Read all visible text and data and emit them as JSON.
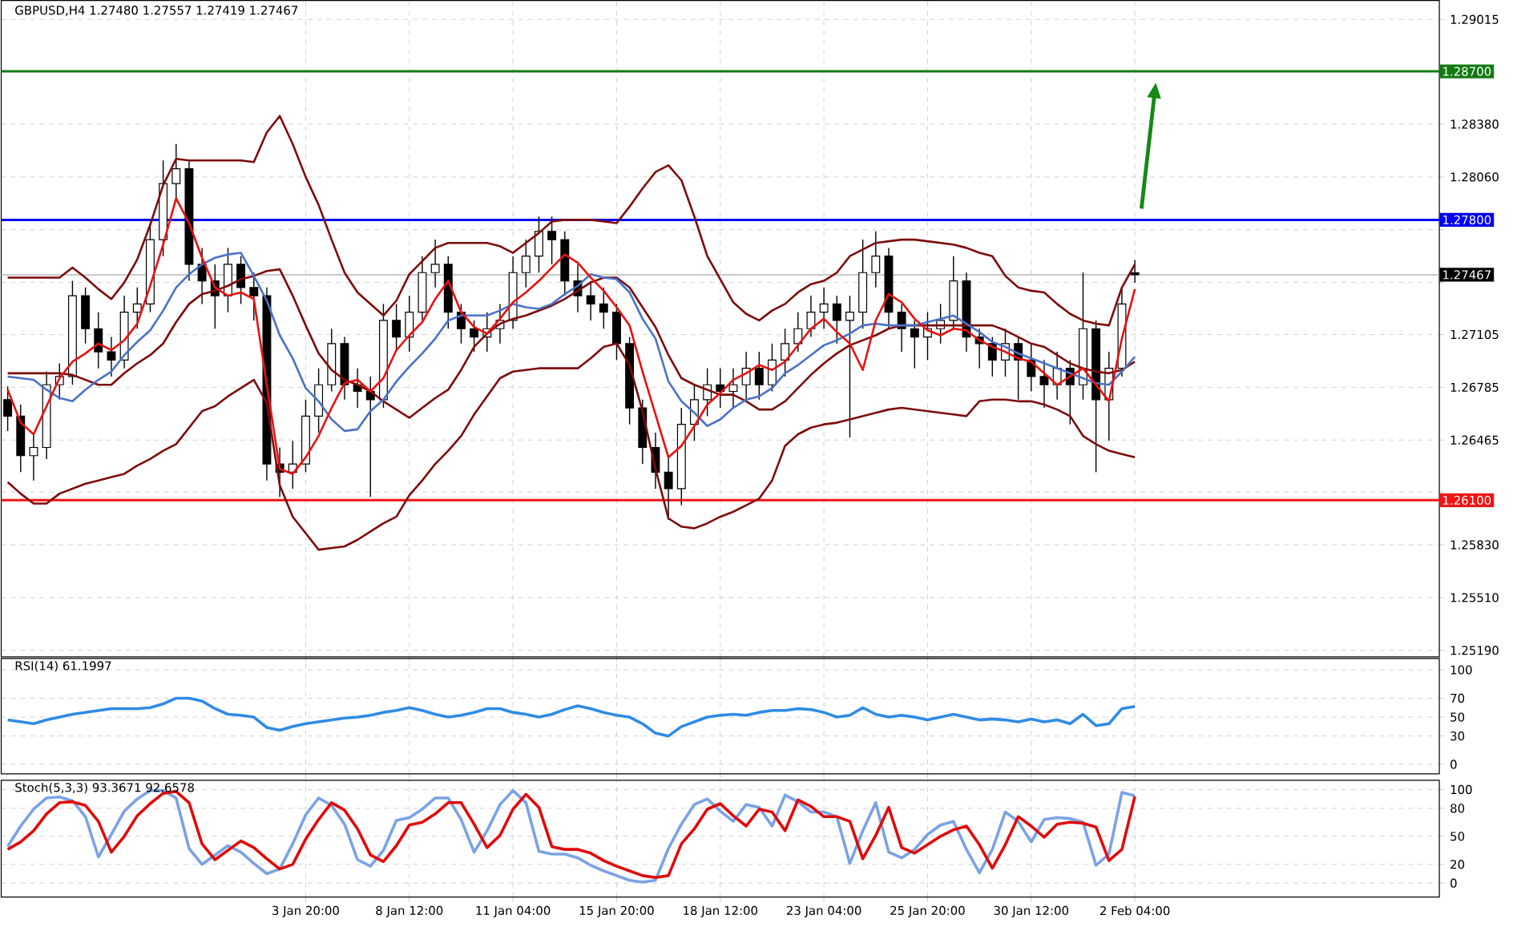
{
  "chart_data": [
    {
      "type": "candlestick",
      "title": "GBPUSD,H4 1.27480 1.27557 1.27419 1.27467",
      "categories": [
        null,
        null,
        null,
        null,
        null,
        null,
        null,
        null,
        null,
        null,
        null,
        null,
        null,
        null,
        null,
        null,
        null,
        null,
        null,
        null,
        null,
        null,
        null,
        null,
        null,
        null,
        null,
        null,
        null,
        null,
        null,
        null,
        null,
        null,
        null,
        null,
        null,
        null,
        null,
        null,
        null,
        null,
        null,
        null,
        null,
        null,
        null,
        null,
        null,
        null,
        null,
        null,
        null,
        null,
        null,
        null,
        null,
        null,
        null,
        null,
        null,
        null,
        null,
        null,
        null,
        null,
        null,
        null,
        null,
        null,
        null,
        null,
        null,
        null,
        null,
        null,
        null,
        null,
        null,
        null,
        null,
        null,
        null,
        null,
        null,
        null,
        null,
        null,
        null,
        null,
        null,
        null,
        null,
        null,
        null,
        null,
        null,
        null,
        null,
        null,
        null,
        null,
        null,
        null,
        null,
        null,
        null,
        null,
        null,
        null,
        null
      ],
      "color": "#000000",
      "ohlc": [
        [
          1.2671,
          1.2679,
          1.2652,
          1.2661
        ],
        [
          1.2661,
          1.2668,
          1.2627,
          1.2637
        ],
        [
          1.2637,
          1.265,
          1.2622,
          1.2642
        ],
        [
          1.2642,
          1.2688,
          1.2635,
          1.268
        ],
        [
          1.268,
          1.2693,
          1.2671,
          1.2685
        ],
        [
          1.2685,
          1.2743,
          1.268,
          1.2734
        ],
        [
          1.2734,
          1.2739,
          1.2705,
          1.2714
        ],
        [
          1.2714,
          1.2724,
          1.269,
          1.27
        ],
        [
          1.27,
          1.2709,
          1.2685,
          1.2695
        ],
        [
          1.2695,
          1.2734,
          1.269,
          1.2724
        ],
        [
          1.2724,
          1.2739,
          1.2714,
          1.2729
        ],
        [
          1.2729,
          1.2778,
          1.2724,
          1.2768
        ],
        [
          1.2768,
          1.2816,
          1.2758,
          1.2802
        ],
        [
          1.2802,
          1.2826,
          1.2792,
          1.2811
        ],
        [
          1.2811,
          1.2816,
          1.2743,
          1.2753
        ],
        [
          1.2753,
          1.2763,
          1.2729,
          1.2743
        ],
        [
          1.2743,
          1.2753,
          1.2714,
          1.2734
        ],
        [
          1.2734,
          1.2763,
          1.2724,
          1.2753
        ],
        [
          1.2753,
          1.2758,
          1.2729,
          1.2739
        ],
        [
          1.2739,
          1.2748,
          1.2719,
          1.2734
        ],
        [
          1.2734,
          1.2739,
          1.2622,
          1.2632
        ],
        [
          1.2632,
          1.2642,
          1.2612,
          1.2627
        ],
        [
          1.2627,
          1.2646,
          1.2617,
          1.2632
        ],
        [
          1.2632,
          1.2671,
          1.2627,
          1.2661
        ],
        [
          1.2661,
          1.269,
          1.2651,
          1.268
        ],
        [
          1.268,
          1.2714,
          1.2676,
          1.2705
        ],
        [
          1.2705,
          1.2709,
          1.2671,
          1.268
        ],
        [
          1.268,
          1.269,
          1.2666,
          1.2676
        ],
        [
          1.2676,
          1.2685,
          1.2612,
          1.2671
        ],
        [
          1.2671,
          1.2729,
          1.2666,
          1.2719
        ],
        [
          1.2719,
          1.2729,
          1.27,
          1.2709
        ],
        [
          1.2709,
          1.2734,
          1.27,
          1.2724
        ],
        [
          1.2724,
          1.2758,
          1.2719,
          1.2748
        ],
        [
          1.2748,
          1.2768,
          1.2739,
          1.2753
        ],
        [
          1.2753,
          1.2758,
          1.2714,
          1.2724
        ],
        [
          1.2724,
          1.2729,
          1.2705,
          1.2714
        ],
        [
          1.2714,
          1.2719,
          1.27,
          1.2709
        ],
        [
          1.2709,
          1.2724,
          1.27,
          1.2714
        ],
        [
          1.2714,
          1.2729,
          1.2705,
          1.2719
        ],
        [
          1.2719,
          1.2758,
          1.2714,
          1.2748
        ],
        [
          1.2748,
          1.2768,
          1.2739,
          1.2758
        ],
        [
          1.2758,
          1.2782,
          1.2748,
          1.2773
        ],
        [
          1.2773,
          1.2782,
          1.2753,
          1.2768
        ],
        [
          1.2768,
          1.2773,
          1.2734,
          1.2743
        ],
        [
          1.2743,
          1.2753,
          1.2724,
          1.2734
        ],
        [
          1.2734,
          1.2743,
          1.2719,
          1.2729
        ],
        [
          1.2729,
          1.2739,
          1.2714,
          1.2724
        ],
        [
          1.2724,
          1.2729,
          1.2695,
          1.2705
        ],
        [
          1.2705,
          1.2709,
          1.2656,
          1.2666
        ],
        [
          1.2666,
          1.2671,
          1.2632,
          1.2642
        ],
        [
          1.2642,
          1.2651,
          1.2617,
          1.2627
        ],
        [
          1.2627,
          1.2637,
          1.2598,
          1.2617
        ],
        [
          1.2617,
          1.2666,
          1.2607,
          1.2656
        ],
        [
          1.2656,
          1.268,
          1.2646,
          1.2671
        ],
        [
          1.2671,
          1.269,
          1.2661,
          1.268
        ],
        [
          1.268,
          1.269,
          1.2666,
          1.2676
        ],
        [
          1.2676,
          1.269,
          1.2666,
          1.268
        ],
        [
          1.268,
          1.27,
          1.2671,
          1.269
        ],
        [
          1.269,
          1.27,
          1.2671,
          1.268
        ],
        [
          1.268,
          1.2705,
          1.2676,
          1.2695
        ],
        [
          1.2695,
          1.2714,
          1.2685,
          1.2705
        ],
        [
          1.2705,
          1.2724,
          1.27,
          1.2714
        ],
        [
          1.2714,
          1.2734,
          1.2709,
          1.2724
        ],
        [
          1.2724,
          1.2739,
          1.2714,
          1.2729
        ],
        [
          1.2729,
          1.2734,
          1.2705,
          1.2719
        ],
        [
          1.2719,
          1.2734,
          1.2648,
          1.2724
        ],
        [
          1.2724,
          1.2768,
          1.2714,
          1.2748
        ],
        [
          1.2748,
          1.2773,
          1.2739,
          1.2758
        ],
        [
          1.2758,
          1.2763,
          1.2714,
          1.2724
        ],
        [
          1.2724,
          1.2729,
          1.27,
          1.2714
        ],
        [
          1.2714,
          1.2719,
          1.269,
          1.2709
        ],
        [
          1.2709,
          1.2724,
          1.2695,
          1.2714
        ],
        [
          1.2714,
          1.2729,
          1.2705,
          1.2719
        ],
        [
          1.2719,
          1.2758,
          1.2714,
          1.2743
        ],
        [
          1.2743,
          1.2748,
          1.27,
          1.2709
        ],
        [
          1.2709,
          1.2714,
          1.269,
          1.2705
        ],
        [
          1.2705,
          1.2709,
          1.2685,
          1.2695
        ],
        [
          1.2695,
          1.2714,
          1.2685,
          1.2705
        ],
        [
          1.2705,
          1.2709,
          1.2671,
          1.2695
        ],
        [
          1.2695,
          1.2705,
          1.2676,
          1.2685
        ],
        [
          1.2685,
          1.2695,
          1.2666,
          1.268
        ],
        [
          1.268,
          1.27,
          1.2671,
          1.269
        ],
        [
          1.269,
          1.2695,
          1.2656,
          1.268
        ],
        [
          1.268,
          1.2748,
          1.2671,
          1.2714
        ],
        [
          1.2714,
          1.2719,
          1.2627,
          1.2671
        ],
        [
          1.2671,
          1.27,
          1.2646,
          1.269
        ],
        [
          1.269,
          1.2739,
          1.2685,
          1.2729
        ],
        [
          1.2748,
          1.27557,
          1.27419,
          1.27467
        ],
        null,
        null,
        null,
        null,
        null,
        null,
        null,
        null,
        null,
        null,
        null,
        null,
        null,
        null,
        null,
        null,
        null,
        null,
        null,
        null,
        null,
        null,
        null
      ],
      "series": [
        {
          "type": "line",
          "color": "#7d0c0c",
          "values": [
            1.2745,
            1.2745,
            1.2745,
            1.2745,
            1.2745,
            1.2751,
            1.2745,
            1.2738,
            1.2732,
            1.2742,
            1.2756,
            1.2777,
            1.2801,
            1.2817,
            1.2816,
            1.2816,
            1.2816,
            1.2816,
            1.2816,
            1.2815,
            1.2833,
            1.2843,
            1.2826,
            1.2806,
            1.2789,
            1.2768,
            1.2748,
            1.2736,
            1.2729,
            1.2722,
            1.2731,
            1.2747,
            1.2755,
            1.2763,
            1.2766,
            1.2766,
            1.2766,
            1.2766,
            1.2764,
            1.276,
            1.2766,
            1.2772,
            1.2779,
            1.278,
            1.278,
            1.278,
            1.2779,
            1.2778,
            1.2788,
            1.2799,
            1.2809,
            1.2813,
            1.2804,
            1.2782,
            1.2758,
            1.2744,
            1.273,
            1.2723,
            1.2719,
            1.2725,
            1.2729,
            1.2736,
            1.2741,
            1.2743,
            1.2748,
            1.2758,
            1.2762,
            1.2766,
            1.2767,
            1.2768,
            1.2768,
            1.2767,
            1.2766,
            1.2765,
            1.2763,
            1.276,
            1.2758,
            1.2746,
            1.2739,
            1.2737,
            1.2736,
            1.2729,
            1.2723,
            1.2719,
            1.2717,
            1.2716,
            1.2739,
            1.2753,
            null,
            null,
            null,
            null,
            null,
            null,
            null,
            null,
            null,
            null,
            null,
            null,
            null,
            null,
            null,
            null,
            null,
            null,
            null,
            null,
            null,
            null,
            null
          ]
        },
        {
          "type": "line",
          "color": "#7d0c0c",
          "values": [
            1.2621,
            1.2614,
            1.2608,
            1.2608,
            1.2614,
            1.2617,
            1.262,
            1.2622,
            1.2624,
            1.2626,
            1.2631,
            1.2635,
            1.264,
            1.2644,
            1.2654,
            1.2664,
            1.2667,
            1.2673,
            1.2678,
            1.2683,
            1.2669,
            1.2619,
            1.26,
            1.259,
            1.258,
            1.2581,
            1.2582,
            1.2586,
            1.2591,
            1.2596,
            1.26,
            1.2613,
            1.2622,
            1.2632,
            1.264,
            1.2649,
            1.2662,
            1.2673,
            1.2684,
            1.2688,
            1.2689,
            1.269,
            1.269,
            1.269,
            1.269,
            1.2696,
            1.2703,
            1.2705,
            1.2692,
            1.2664,
            1.2629,
            1.2599,
            1.2594,
            1.2593,
            1.2596,
            1.26,
            1.2603,
            1.2607,
            1.2611,
            1.2622,
            1.2643,
            1.265,
            1.2654,
            1.2656,
            1.2657,
            1.2659,
            1.2661,
            1.2663,
            1.2665,
            1.2666,
            1.2665,
            1.2664,
            1.2663,
            1.2662,
            1.2661,
            1.267,
            1.2671,
            1.2671,
            1.267,
            1.267,
            1.2668,
            1.2665,
            1.2661,
            1.2649,
            1.2644,
            1.264,
            1.2638,
            1.2636,
            null,
            null,
            null,
            null,
            null,
            null,
            null,
            null,
            null,
            null,
            null,
            null,
            null,
            null,
            null,
            null,
            null,
            null,
            null,
            null,
            null,
            null,
            null
          ]
        },
        {
          "type": "line",
          "color": "#7d0c0c",
          "values": [
            1.2687,
            1.2687,
            1.2687,
            1.2687,
            1.2687,
            1.2686,
            1.2683,
            1.268,
            1.268,
            1.2687,
            1.2693,
            1.2698,
            1.2705,
            1.2718,
            1.2729,
            1.2735,
            1.2737,
            1.274,
            1.2744,
            1.2746,
            1.2749,
            1.275,
            1.2734,
            1.2716,
            1.2699,
            1.2689,
            1.2683,
            1.268,
            1.2676,
            1.267,
            1.2665,
            1.266,
            1.2666,
            1.2672,
            1.2677,
            1.2689,
            1.2703,
            1.2711,
            1.2717,
            1.272,
            1.2722,
            1.2725,
            1.2728,
            1.2732,
            1.2737,
            1.2742,
            1.2745,
            1.2745,
            1.2739,
            1.2727,
            1.2715,
            1.2698,
            1.2684,
            1.268,
            1.2677,
            1.2674,
            1.2674,
            1.267,
            1.2665,
            1.2665,
            1.267,
            1.2678,
            1.2686,
            1.2693,
            1.2699,
            1.2704,
            1.2707,
            1.271,
            1.2714,
            1.2716,
            1.2716,
            1.2716,
            1.2716,
            1.2716,
            1.2716,
            1.2716,
            1.2716,
            1.2713,
            1.2709,
            1.2705,
            1.2703,
            1.2698,
            1.2693,
            1.269,
            1.2688,
            1.2687,
            1.2689,
            1.2694,
            null,
            null,
            null,
            null,
            null,
            null,
            null,
            null,
            null,
            null,
            null,
            null,
            null,
            null,
            null,
            null,
            null,
            null,
            null,
            null,
            null,
            null,
            null
          ]
        },
        {
          "type": "line",
          "color": "#4a72c8",
          "values": [
            1.2685,
            1.2684,
            1.2683,
            1.2677,
            1.2672,
            1.267,
            1.2677,
            1.2683,
            1.2688,
            1.2698,
            1.2706,
            1.2713,
            1.2725,
            1.2739,
            1.2747,
            1.2753,
            1.2757,
            1.2759,
            1.276,
            1.2746,
            1.2731,
            1.271,
            1.2696,
            1.2678,
            1.267,
            1.2659,
            1.2652,
            1.2653,
            1.2664,
            1.2671,
            1.2682,
            1.2691,
            1.2699,
            1.2708,
            1.2719,
            1.2722,
            1.2722,
            1.2722,
            1.2725,
            1.2729,
            1.2727,
            1.2726,
            1.2729,
            1.2735,
            1.274,
            1.2747,
            1.2745,
            1.2744,
            1.2736,
            1.272,
            1.2708,
            1.2682,
            1.267,
            1.2663,
            1.2655,
            1.2659,
            1.2666,
            1.2671,
            1.2673,
            1.2678,
            1.2687,
            1.2692,
            1.2698,
            1.2704,
            1.2707,
            1.2711,
            1.2716,
            1.2717,
            1.2716,
            1.2716,
            1.2716,
            1.2718,
            1.272,
            1.2722,
            1.2717,
            1.2712,
            1.2706,
            1.2703,
            1.2699,
            1.2696,
            1.2693,
            1.269,
            1.2687,
            1.2684,
            1.2681,
            1.268,
            1.2688,
            1.2697,
            null,
            null,
            null,
            null,
            null,
            null,
            null,
            null,
            null,
            null,
            null,
            null,
            null,
            null,
            null,
            null,
            null,
            null,
            null,
            null,
            null,
            null,
            null
          ]
        },
        {
          "type": "line",
          "color": "#e8110f",
          "values": [
            1.2677,
            1.2657,
            1.265,
            1.2667,
            1.2684,
            1.2694,
            1.2699,
            1.2705,
            1.2701,
            1.2707,
            1.2717,
            1.274,
            1.2765,
            1.2793,
            1.2778,
            1.2757,
            1.2739,
            1.2734,
            1.2736,
            1.2732,
            1.268,
            1.2629,
            1.2626,
            1.2636,
            1.2649,
            1.2666,
            1.2681,
            1.2683,
            1.2676,
            1.2684,
            1.2701,
            1.271,
            1.2718,
            1.2732,
            1.2743,
            1.2724,
            1.2715,
            1.2711,
            1.272,
            1.273,
            1.2736,
            1.2743,
            1.2751,
            1.2759,
            1.2754,
            1.2745,
            1.2737,
            1.2727,
            1.2716,
            1.2688,
            1.2662,
            1.2636,
            1.2643,
            1.2655,
            1.2668,
            1.2675,
            1.2683,
            1.2687,
            1.2692,
            1.2689,
            1.2694,
            1.2704,
            1.2714,
            1.272,
            1.2712,
            1.2705,
            1.2689,
            1.2719,
            1.2735,
            1.273,
            1.272,
            1.2713,
            1.271,
            1.2714,
            1.2713,
            1.2707,
            1.2703,
            1.27,
            1.2696,
            1.2694,
            1.2687,
            1.268,
            1.2685,
            1.269,
            1.268,
            1.267,
            1.2708,
            1.2738,
            null,
            null,
            null,
            null,
            null,
            null,
            null,
            null,
            null,
            null,
            null,
            null,
            null,
            null,
            null,
            null,
            null,
            null,
            null,
            null,
            null,
            null,
            null
          ]
        }
      ],
      "ylim": [
        1.2515,
        1.2913
      ],
      "yticks": [
        {
          "value": 1.2519,
          "label": "1.25190"
        },
        {
          "value": 1.2551,
          "label": "1.25510"
        },
        {
          "value": 1.2583,
          "label": "1.25830"
        },
        {
          "value": 1.2615,
          "label": null
        },
        {
          "value": 1.26465,
          "label": "1.26465"
        },
        {
          "value": 1.26785,
          "label": "1.26785"
        },
        {
          "value": 1.27105,
          "label": "1.27105"
        },
        {
          "value": 1.2742,
          "label": null
        },
        {
          "value": 1.2774,
          "label": null
        },
        {
          "value": 1.2806,
          "label": "1.28060"
        },
        {
          "value": 1.2838,
          "label": "1.28380"
        },
        {
          "value": 1.29015,
          "label": "1.29015"
        }
      ],
      "grid": true,
      "tick_labels": "y",
      "ref_lines": [
        {
          "axis": "y",
          "value": 1.287,
          "label": "1.28700",
          "color": "#137a13"
        },
        {
          "axis": "y",
          "value": 1.278,
          "label": "1.27800",
          "color": "#0000f0"
        },
        {
          "axis": "y",
          "value": 1.261,
          "label": "1.26100",
          "color": "#f01414"
        },
        {
          "axis": "y",
          "value": 1.27467,
          "label": "1.27467",
          "color": "#b8b8b8"
        }
      ]
    },
    {
      "type": "line",
      "title": "RSI(14) 61.1997",
      "categories": [
        null,
        null,
        null,
        null,
        null,
        null,
        null,
        null,
        null,
        null,
        null,
        null,
        null,
        null,
        null,
        null,
        null,
        null,
        null,
        null,
        null,
        null,
        null,
        null,
        null,
        null,
        null,
        null,
        null,
        null,
        null,
        null,
        null,
        null,
        null,
        null,
        null,
        null,
        null,
        null,
        null,
        null,
        null,
        null,
        null,
        null,
        null,
        null,
        null,
        null,
        null,
        null,
        null,
        null,
        null,
        null,
        null,
        null,
        null,
        null,
        null,
        null,
        null,
        null,
        null,
        null,
        null,
        null,
        null,
        null,
        null,
        null,
        null,
        null,
        null,
        null,
        null,
        null,
        null,
        null,
        null,
        null,
        null,
        null,
        null,
        null,
        null,
        null,
        null,
        null,
        null,
        null,
        null,
        null,
        null,
        null,
        null,
        null,
        null,
        null,
        null,
        null,
        null,
        null,
        null,
        null,
        null,
        null,
        null,
        null,
        null
      ],
      "series": [
        {
          "color": "#2f8be6",
          "values": [
            47,
            45,
            43,
            47,
            50,
            53,
            55,
            57,
            59,
            59,
            59,
            60,
            64,
            70,
            70,
            67,
            59,
            53,
            52,
            50,
            39,
            36,
            40,
            43,
            45,
            47,
            49,
            50,
            52,
            55,
            57,
            60,
            57,
            53,
            50,
            52,
            55,
            59,
            59,
            55,
            53,
            50,
            53,
            58,
            62,
            59,
            55,
            52,
            50,
            43,
            33,
            30,
            40,
            45,
            50,
            52,
            53,
            52,
            55,
            57,
            57,
            59,
            58,
            55,
            50,
            52,
            60,
            53,
            50,
            52,
            50,
            47,
            50,
            53,
            50,
            47,
            48,
            47,
            45,
            48,
            45,
            47,
            43,
            53,
            41,
            43,
            59,
            61.1997,
            null,
            null,
            null,
            null,
            null,
            null,
            null,
            null,
            null,
            null,
            null,
            null,
            null,
            null,
            null,
            null,
            null,
            null,
            null,
            null,
            null,
            null,
            null
          ]
        }
      ],
      "ylim": [
        -10,
        112
      ],
      "yticks": [
        0,
        30,
        50,
        70,
        100
      ],
      "grid": true,
      "tick_labels": "y"
    },
    {
      "type": "line",
      "title": "Stoch(5,3,3) 93.3671 92.6578",
      "categories": [
        null,
        null,
        null,
        null,
        null,
        null,
        null,
        null,
        null,
        null,
        null,
        null,
        null,
        null,
        null,
        null,
        null,
        null,
        null,
        null,
        null,
        null,
        null,
        "3 Jan 20:00",
        null,
        null,
        null,
        null,
        null,
        null,
        null,
        "8 Jan 12:00",
        null,
        null,
        null,
        null,
        null,
        null,
        null,
        "11 Jan 04:00",
        null,
        null,
        null,
        null,
        null,
        null,
        null,
        "15 Jan 20:00",
        null,
        null,
        null,
        null,
        null,
        null,
        null,
        "18 Jan 12:00",
        null,
        null,
        null,
        null,
        null,
        null,
        null,
        "23 Jan 04:00",
        null,
        null,
        null,
        null,
        null,
        null,
        null,
        "25 Jan 20:00",
        null,
        null,
        null,
        null,
        null,
        null,
        null,
        "30 Jan 12:00",
        null,
        null,
        null,
        null,
        null,
        null,
        null,
        "2 Feb 04:00",
        null,
        null,
        null,
        null,
        null,
        null,
        null,
        null,
        null,
        null,
        null,
        null,
        null,
        null,
        null,
        null,
        null,
        null,
        null,
        null,
        null,
        null,
        null
      ],
      "series": [
        {
          "color": "#7aa2e6",
          "values": [
            39,
            61,
            79,
            91,
            92,
            88,
            71,
            28,
            52,
            77,
            90,
            99,
            99,
            91,
            37,
            20,
            30,
            40,
            33,
            21,
            10,
            15,
            42,
            73,
            91,
            83,
            63,
            25,
            18,
            35,
            67,
            70,
            79,
            91,
            91,
            68,
            33,
            56,
            84,
            99,
            86,
            34,
            31,
            31,
            27,
            19,
            13,
            8,
            3,
            1,
            3,
            37,
            63,
            84,
            90,
            77,
            66,
            84,
            81,
            61,
            94,
            87,
            76,
            76,
            71,
            21,
            56,
            86,
            33,
            27,
            36,
            52,
            62,
            66,
            36,
            11,
            36,
            76,
            66,
            44,
            68,
            70,
            69,
            65,
            19,
            31,
            97,
            93.3671,
            null,
            null,
            null,
            null,
            null,
            null,
            null,
            null,
            null,
            null,
            null,
            null,
            null,
            null,
            null,
            null,
            null,
            null,
            null,
            null,
            null,
            null,
            null
          ]
        },
        {
          "color": "#e00b0b",
          "values": [
            36,
            44,
            56,
            74,
            86,
            87,
            83,
            66,
            33,
            50,
            72,
            85,
            96,
            98,
            86,
            42,
            25,
            35,
            45,
            38,
            26,
            15,
            20,
            47,
            68,
            86,
            78,
            58,
            30,
            23,
            40,
            62,
            65,
            74,
            86,
            86,
            63,
            38,
            51,
            79,
            95,
            81,
            39,
            36,
            36,
            32,
            24,
            18,
            13,
            8,
            6,
            8,
            42,
            58,
            79,
            85,
            72,
            61,
            79,
            76,
            56,
            89,
            82,
            71,
            71,
            66,
            26,
            51,
            81,
            38,
            32,
            41,
            50,
            57,
            61,
            41,
            16,
            41,
            71,
            61,
            49,
            63,
            65,
            64,
            60,
            24,
            36,
            92.6578,
            null,
            null,
            null,
            null,
            null,
            null,
            null,
            null,
            null,
            null,
            null,
            null,
            null,
            null,
            null,
            null,
            null,
            null,
            null,
            null,
            null,
            null,
            null
          ]
        }
      ],
      "ylim": [
        -15,
        110
      ],
      "yticks": [
        0,
        20,
        50,
        80,
        100
      ],
      "grid": true
    }
  ]
}
